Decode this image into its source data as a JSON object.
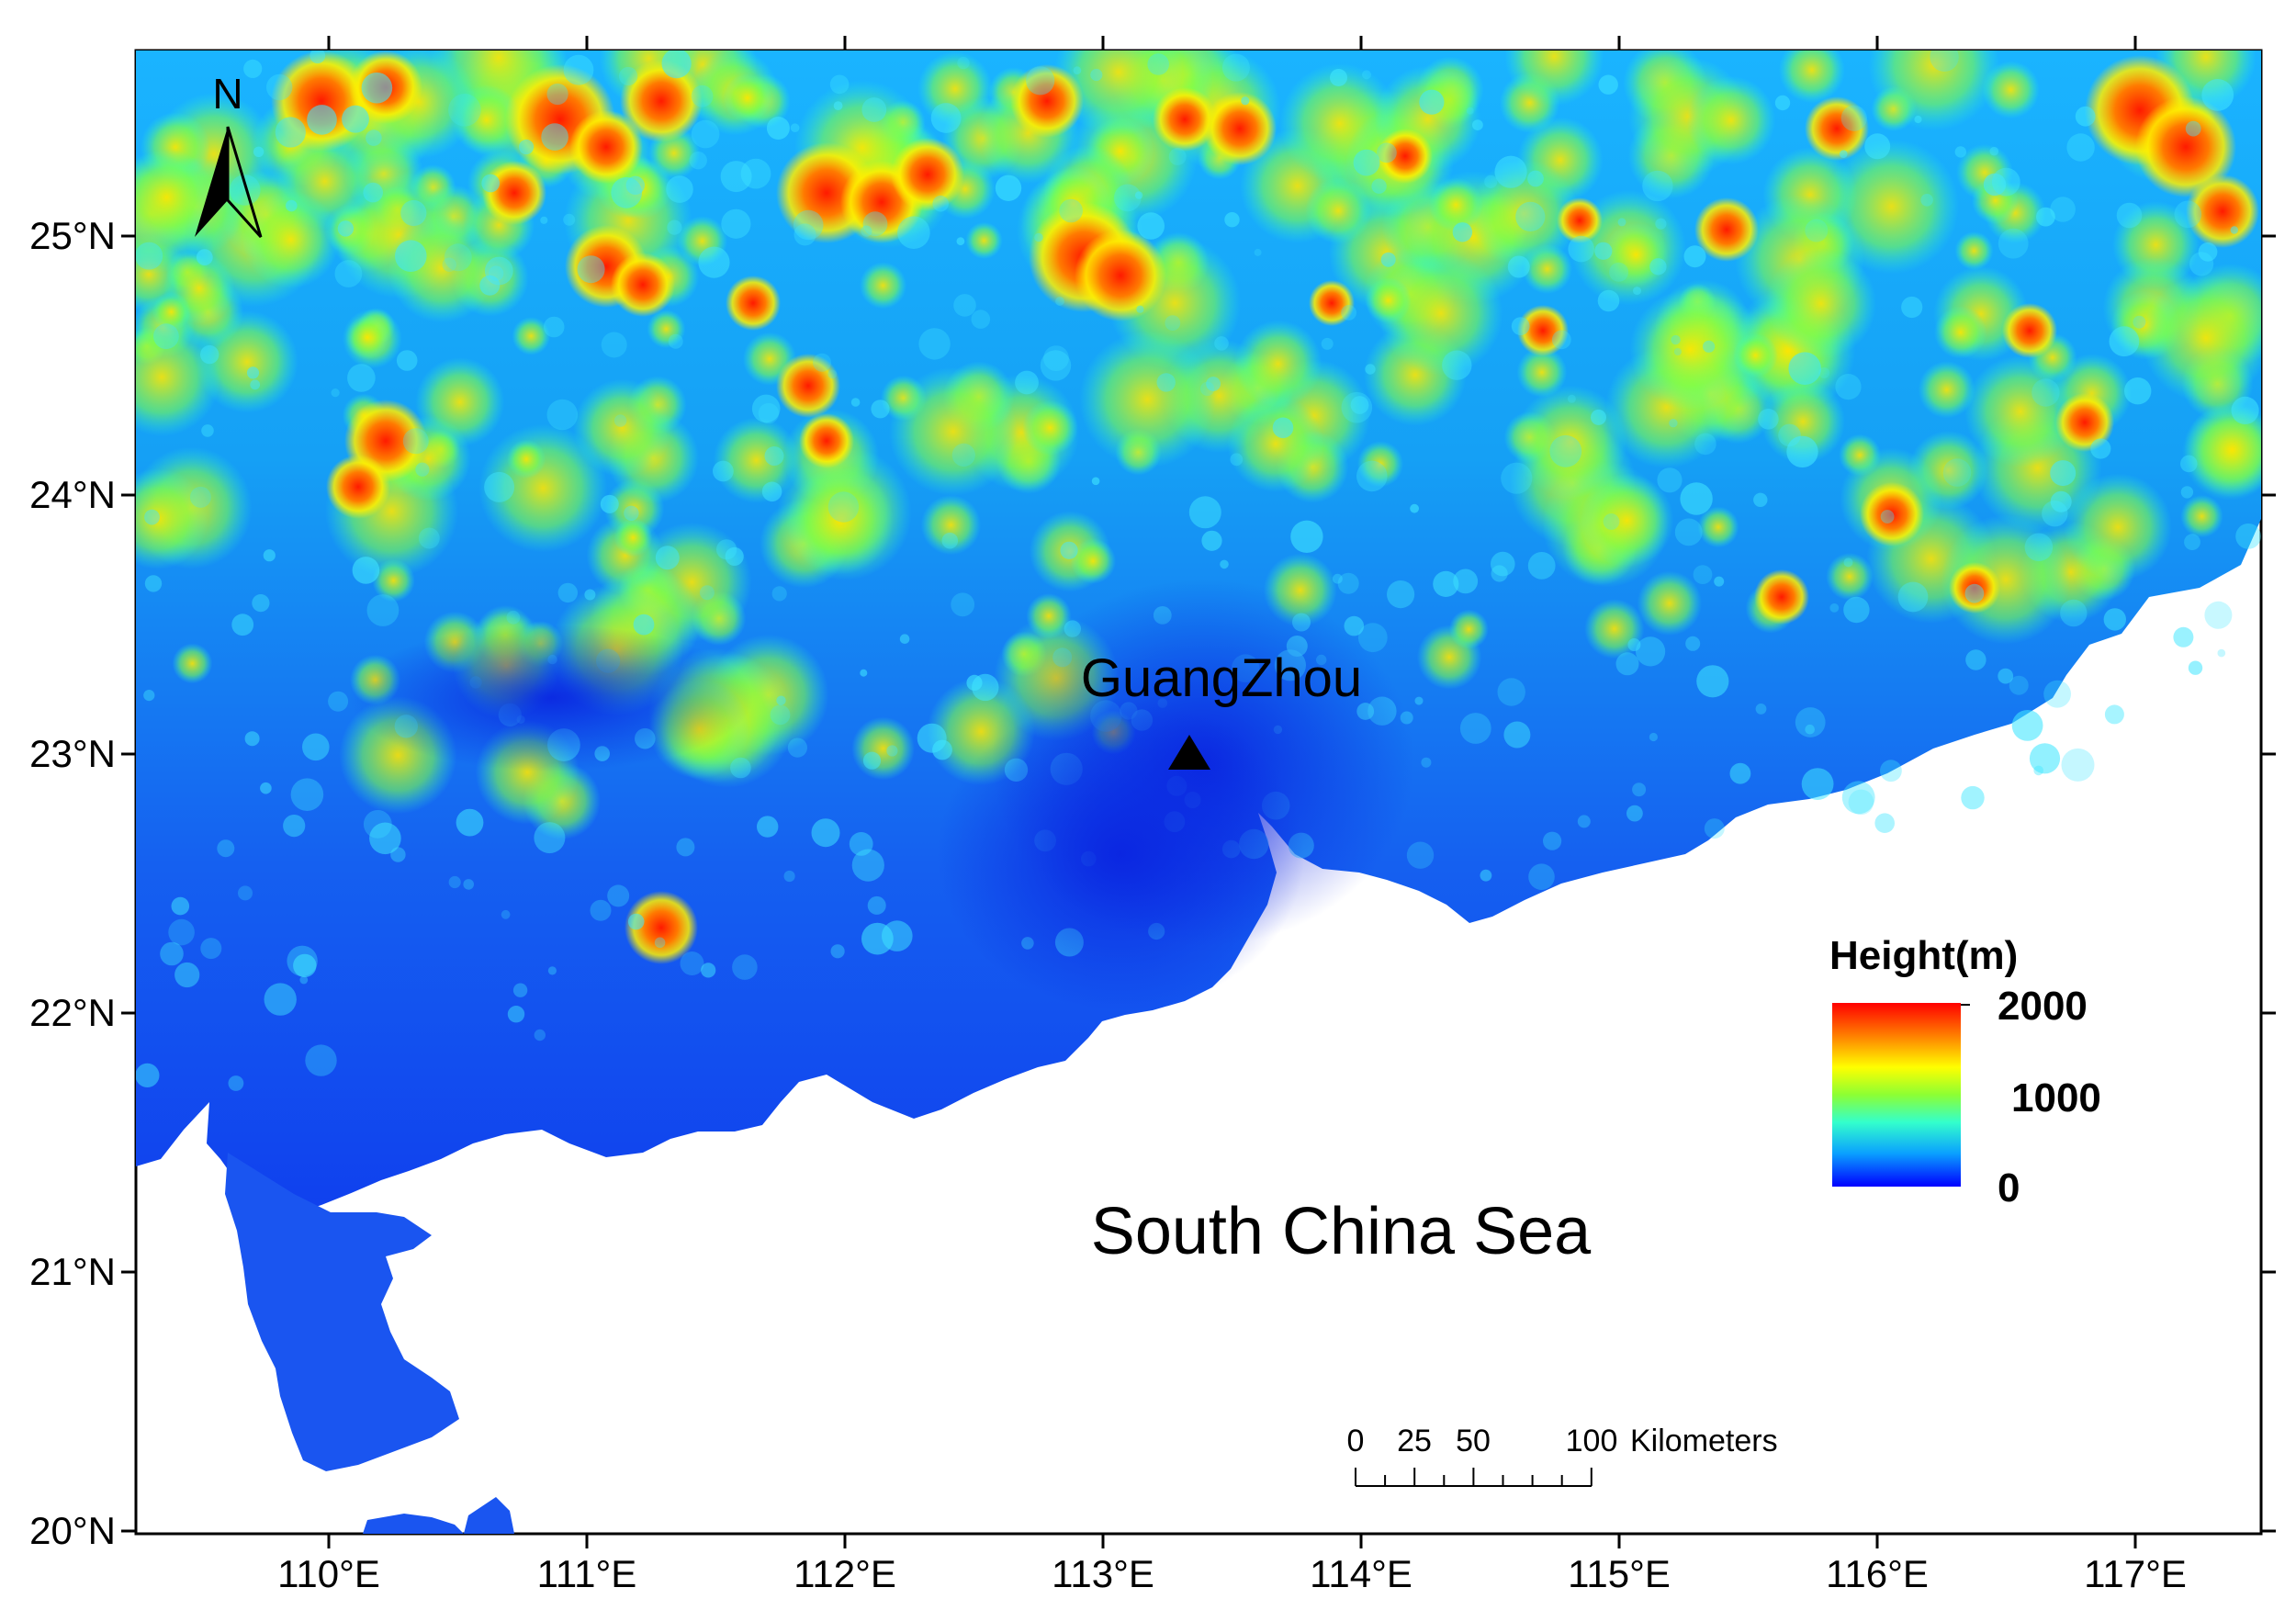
{
  "map": {
    "lon_labels": [
      "110°E",
      "111°E",
      "112°E",
      "113°E",
      "114°E",
      "115°E",
      "116°E",
      "117°E"
    ],
    "lat_labels": [
      "25°N",
      "24°N",
      "23°N",
      "22°N",
      "21°N",
      "20°N"
    ],
    "north_arrow_label": "N",
    "city_label": "GuangZhou",
    "sea_label": "South China Sea"
  },
  "legend": {
    "title": "Height(m)",
    "max_label": "2000",
    "mid_label": "1000",
    "min_label": "0",
    "colors": [
      "#0000ff",
      "#0aa0ff",
      "#33ffcc",
      "#8cff33",
      "#ffff00",
      "#ff8000",
      "#ff0000"
    ]
  },
  "scale_bar": {
    "ticks": [
      "0",
      "25",
      "50",
      "100"
    ],
    "unit": "Kilometers"
  }
}
